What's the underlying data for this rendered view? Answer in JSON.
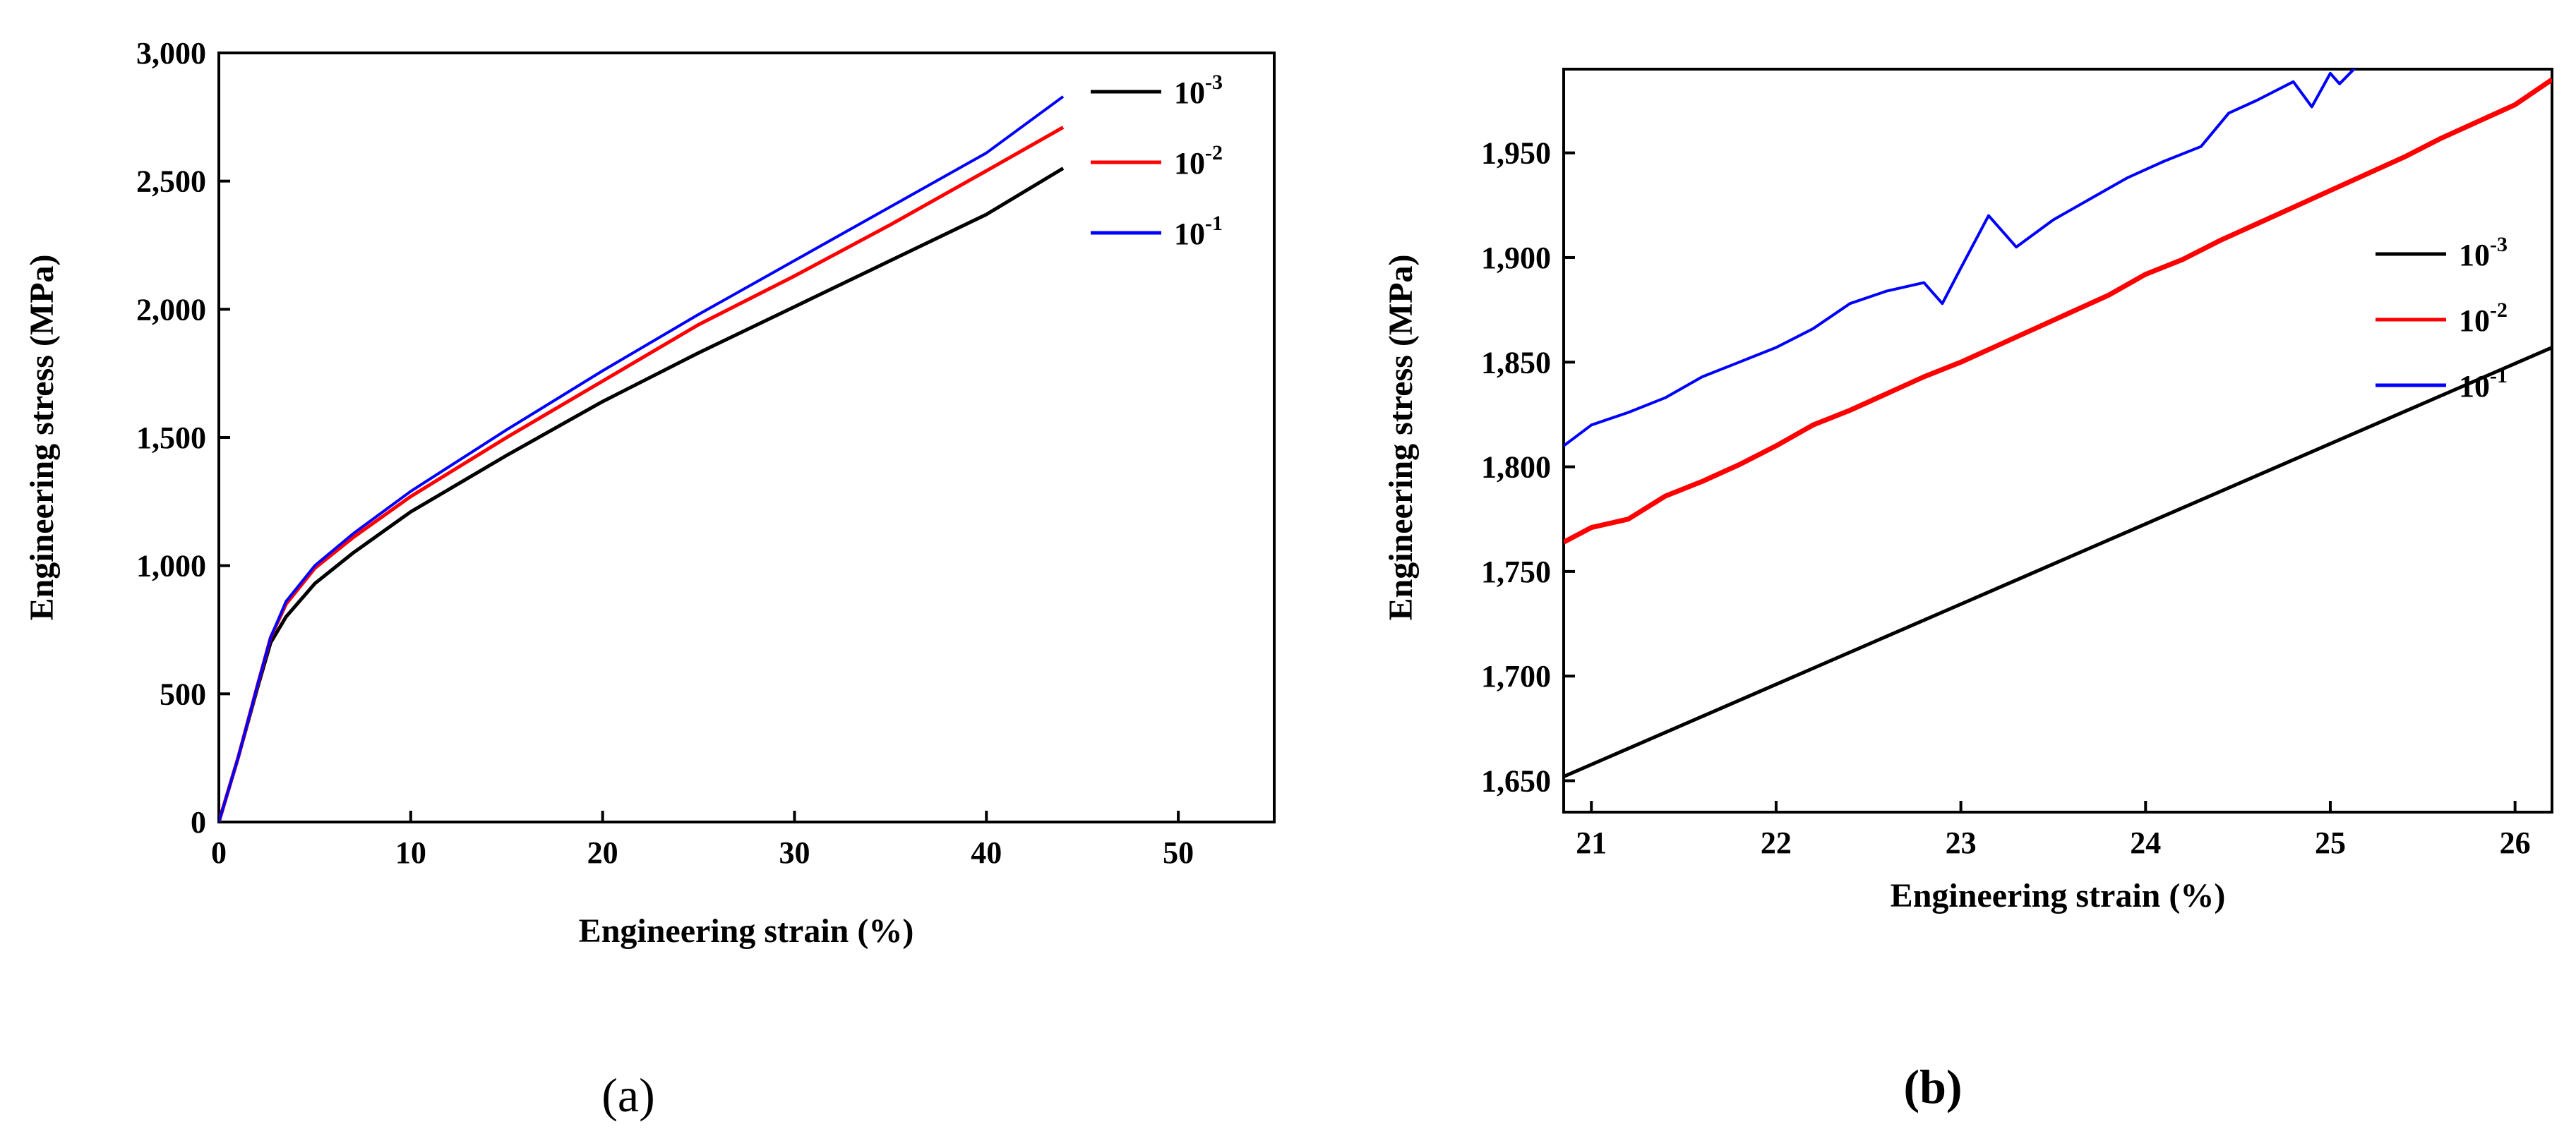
{
  "chart_data": [
    {
      "type": "line",
      "panel": "(a)",
      "xlabel": "Engineering strain (%)",
      "ylabel": "Engineering stress (MPa)",
      "xlim": [
        0,
        55
      ],
      "ylim": [
        0,
        3000
      ],
      "xticks": [
        0,
        10,
        20,
        30,
        40,
        50
      ],
      "yticks": [
        0,
        500,
        1000,
        1500,
        2000,
        2500,
        3000
      ],
      "xtick_labels": [
        "0",
        "10",
        "20",
        "30",
        "40",
        "50"
      ],
      "ytick_labels": [
        "0",
        "500",
        "1,000",
        "1,500",
        "2,000",
        "2,500",
        "3,000"
      ],
      "legend_position": "top-right",
      "series": [
        {
          "name": "10^-3",
          "base": "10",
          "exp": "-3",
          "color": "#000000",
          "x": [
            0,
            1,
            2,
            2.7,
            3.5,
            5,
            7,
            10,
            15,
            20,
            25,
            30,
            35,
            40,
            44
          ],
          "y": [
            0,
            250,
            520,
            700,
            800,
            930,
            1050,
            1210,
            1430,
            1640,
            1830,
            2010,
            2190,
            2370,
            2550
          ]
        },
        {
          "name": "10^-2",
          "base": "10",
          "exp": "-2",
          "color": "#ff0000",
          "x": [
            0,
            1,
            2,
            2.7,
            3.5,
            5,
            7,
            10,
            15,
            20,
            25,
            30,
            35,
            40,
            44
          ],
          "y": [
            0,
            250,
            530,
            720,
            850,
            990,
            1110,
            1270,
            1500,
            1720,
            1940,
            2130,
            2330,
            2540,
            2710
          ]
        },
        {
          "name": "10^-1",
          "base": "10",
          "exp": "-1",
          "color": "#0000ff",
          "x": [
            0,
            1,
            2,
            2.7,
            3.5,
            5,
            7,
            10,
            15,
            20,
            25,
            30,
            35,
            40,
            44
          ],
          "y": [
            0,
            250,
            530,
            720,
            860,
            1000,
            1125,
            1290,
            1530,
            1760,
            1980,
            2190,
            2400,
            2610,
            2830
          ]
        }
      ]
    },
    {
      "type": "line",
      "panel": "(b)",
      "xlabel": "Engineering strain (%)",
      "ylabel": "Engineering stress (MPa)",
      "xlim": [
        20.85,
        26.2
      ],
      "ylim": [
        1635,
        1990
      ],
      "xticks": [
        21,
        22,
        23,
        24,
        25,
        26
      ],
      "yticks": [
        1650,
        1700,
        1750,
        1800,
        1850,
        1900,
        1950
      ],
      "xtick_labels": [
        "21",
        "22",
        "23",
        "24",
        "25",
        "26"
      ],
      "ytick_labels": [
        "1,650",
        "1,700",
        "1,750",
        "1,800",
        "1,850",
        "1,900",
        "1,950"
      ],
      "legend_position": "right",
      "series": [
        {
          "name": "10^-3",
          "base": "10",
          "exp": "-3",
          "color": "#000000",
          "x": [
            20.85,
            26.2
          ],
          "y": [
            1652,
            1857
          ]
        },
        {
          "name": "10^-2",
          "base": "10",
          "exp": "-2",
          "color": "#ff0000",
          "x": [
            20.85,
            21.0,
            21.2,
            21.4,
            21.6,
            21.8,
            22.0,
            22.2,
            22.4,
            22.6,
            22.8,
            23.0,
            23.2,
            23.4,
            23.6,
            23.8,
            24.0,
            24.2,
            24.4,
            24.6,
            24.8,
            25.0,
            25.2,
            25.4,
            25.6,
            25.8,
            26.0,
            26.2
          ],
          "y": [
            1764,
            1771,
            1775,
            1786,
            1793,
            1801,
            1810,
            1820,
            1827,
            1835,
            1843,
            1850,
            1858,
            1866,
            1874,
            1882,
            1892,
            1899,
            1908,
            1916,
            1924,
            1932,
            1940,
            1948,
            1957,
            1965,
            1973,
            1985
          ]
        },
        {
          "name": "10^-1",
          "base": "10",
          "exp": "-1",
          "color": "#0000ff",
          "x": [
            20.85,
            21.0,
            21.2,
            21.4,
            21.6,
            21.8,
            22.0,
            22.2,
            22.4,
            22.6,
            22.8,
            22.9,
            23.0,
            23.15,
            23.3,
            23.5,
            23.7,
            23.9,
            24.1,
            24.3,
            24.45,
            24.6,
            24.8,
            24.9,
            25.0,
            25.05,
            25.15
          ],
          "y": [
            1810,
            1820,
            1826,
            1833,
            1843,
            1850,
            1857,
            1866,
            1878,
            1884,
            1888,
            1878,
            1895,
            1920,
            1905,
            1918,
            1928,
            1938,
            1946,
            1953,
            1969,
            1975,
            1984,
            1972,
            1988,
            1983,
            1992
          ]
        }
      ]
    }
  ]
}
